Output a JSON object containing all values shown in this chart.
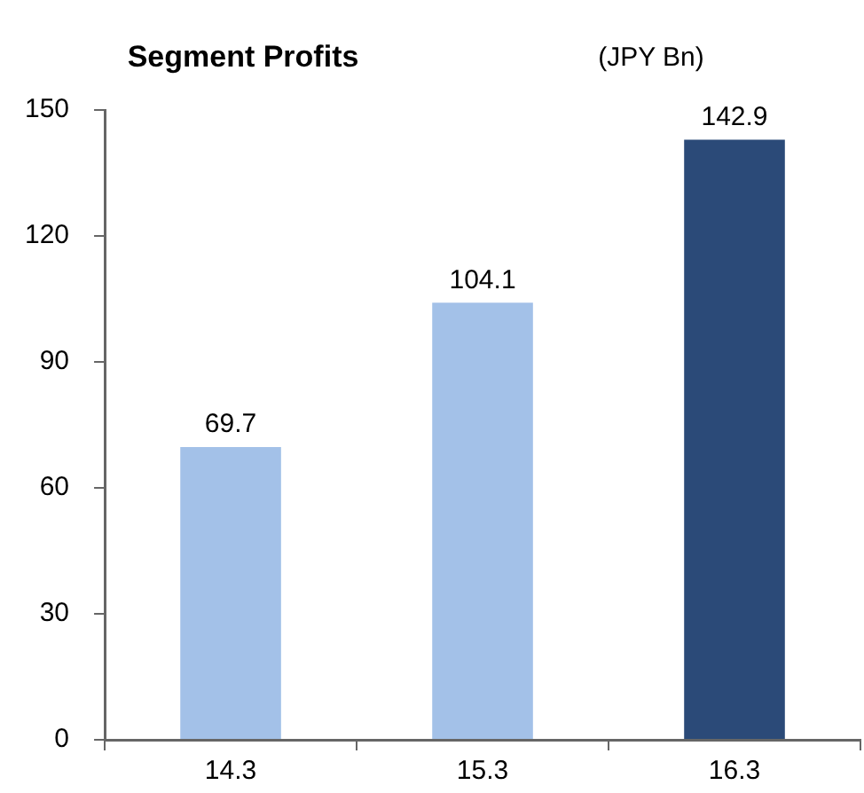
{
  "chart_data": {
    "type": "bar",
    "title": "Segment Profits",
    "ylabel": "(JPY Bn)",
    "categories": [
      "14.3",
      "15.3",
      "16.3"
    ],
    "values": [
      69.7,
      104.1,
      142.9
    ],
    "colors": [
      "#a3c1e8",
      "#a3c1e8",
      "#2b4a78"
    ],
    "ylim": [
      0,
      150
    ],
    "yticks": [
      0,
      30,
      60,
      90,
      120,
      150
    ],
    "data_labels": true,
    "grid": false,
    "legend": false
  }
}
